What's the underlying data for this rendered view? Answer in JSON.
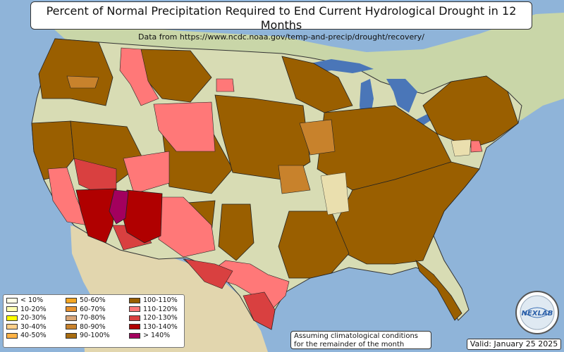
{
  "title": {
    "main": "Percent of Normal Precipitation Required to End Current Hydrological Drought in 12 Months",
    "sub": "Data from https://www.ncdc.noaa.gov/temp-and-precip/drought/recovery/"
  },
  "legend": {
    "items": [
      {
        "label": "< 10%",
        "color": "#ffffe6"
      },
      {
        "label": "10-20%",
        "color": "#ffffb3"
      },
      {
        "label": "20-30%",
        "color": "#ffff00"
      },
      {
        "label": "30-40%",
        "color": "#ffd08a"
      },
      {
        "label": "40-50%",
        "color": "#ffb347"
      },
      {
        "label": "50-60%",
        "color": "#f5a623"
      },
      {
        "label": "60-70%",
        "color": "#e8912e"
      },
      {
        "label": "70-80%",
        "color": "#d9a679"
      },
      {
        "label": "80-90%",
        "color": "#c8822c"
      },
      {
        "label": "90-100%",
        "color": "#a86c10"
      },
      {
        "label": "100-110%",
        "color": "#9a5f00"
      },
      {
        "label": "110-120%",
        "color": "#ff7878"
      },
      {
        "label": "120-130%",
        "color": "#d94040"
      },
      {
        "label": "130-140%",
        "color": "#b00000"
      },
      {
        "label": "> 140%",
        "color": "#a3005e"
      }
    ]
  },
  "note": {
    "line1": "Assuming climatological conditions",
    "line2": "for the remainder of the month"
  },
  "valid_label": "Valid: January 25 2025",
  "logo_text": "NEXLAB",
  "colors": {
    "ocean": "#8fb4d9",
    "land": "#d8dcb4",
    "mexico": "#e2d6ae",
    "canada": "#c9d6a8",
    "lakes": "#4a76b8"
  }
}
